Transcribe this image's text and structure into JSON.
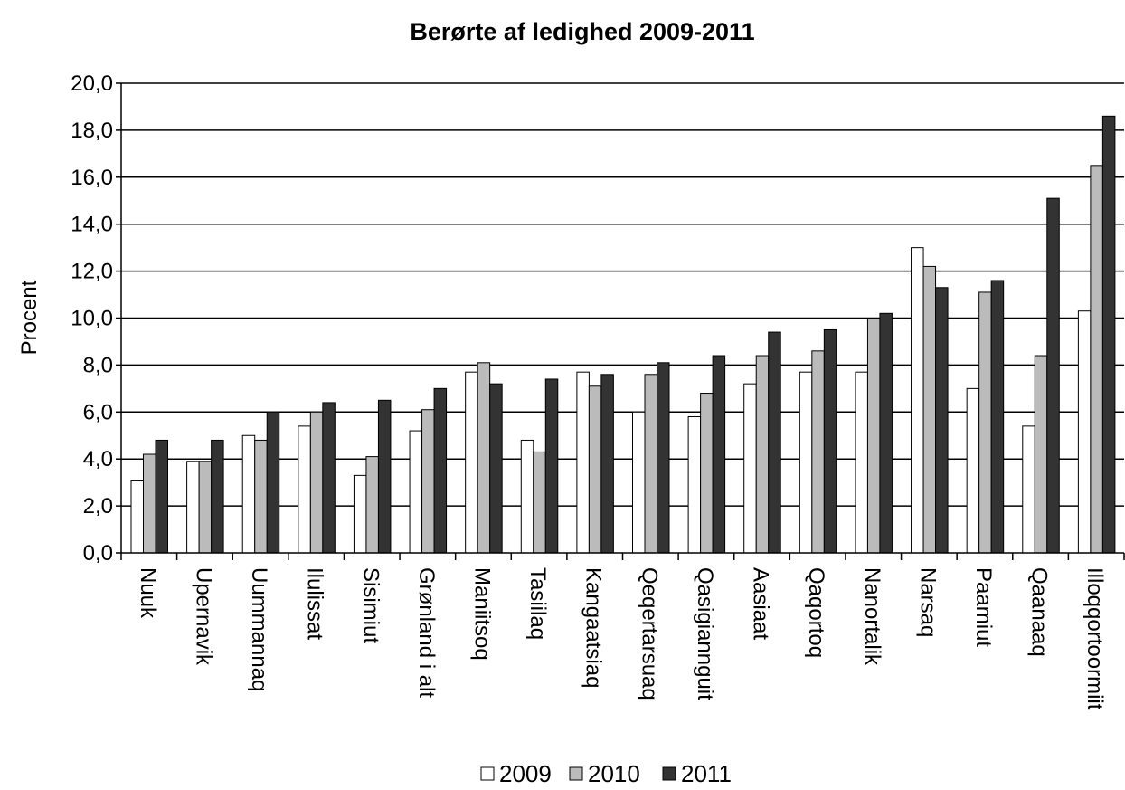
{
  "chart_data": {
    "type": "bar",
    "title": "Berørte af ledighed 2009-2011",
    "xlabel": "",
    "ylabel": "Procent",
    "ylim": [
      0,
      20
    ],
    "y_ticks": [
      "0,0",
      "2,0",
      "4,0",
      "6,0",
      "8,0",
      "10,0",
      "12,0",
      "14,0",
      "16,0",
      "18,0",
      "20,0"
    ],
    "grid": true,
    "legend_position": "bottom-center",
    "categories": [
      "Nuuk",
      "Upernavik",
      "Uummannaq",
      "Ilulissat",
      "Sisimiut",
      "Grønland i alt",
      "Maniitsoq",
      "Tasiilaq",
      "Kangaatsiaq",
      "Qeqertarsuaq",
      "Qasigiannguit",
      "Aasiaat",
      "Qaqortoq",
      "Nanortalik",
      "Narsaq",
      "Paamiut",
      "Qaanaaq",
      "Illoqqortoormiit"
    ],
    "series": [
      {
        "name": "2009",
        "color": "#ffffff",
        "values": [
          3.1,
          3.9,
          5.0,
          5.4,
          3.3,
          5.2,
          7.7,
          4.8,
          7.7,
          6.0,
          5.8,
          7.2,
          7.7,
          7.7,
          13.0,
          7.0,
          5.4,
          10.3
        ]
      },
      {
        "name": "2010",
        "color": "#bbbbbb",
        "values": [
          4.2,
          3.9,
          4.8,
          6.0,
          4.1,
          6.1,
          8.1,
          4.3,
          7.1,
          7.6,
          6.8,
          8.4,
          8.6,
          10.0,
          12.2,
          11.1,
          8.4,
          16.5
        ]
      },
      {
        "name": "2011",
        "color": "#333333",
        "values": [
          4.8,
          4.8,
          6.0,
          6.4,
          6.5,
          7.0,
          7.2,
          7.4,
          7.6,
          8.1,
          8.4,
          9.4,
          9.5,
          10.2,
          11.3,
          11.6,
          15.1,
          18.6
        ]
      }
    ]
  }
}
